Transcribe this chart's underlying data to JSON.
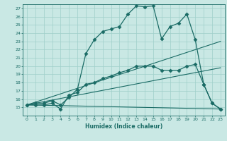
{
  "xlabel": "Humidex (Indice chaleur)",
  "xlim": [
    -0.5,
    23.5
  ],
  "ylim": [
    14,
    27.5
  ],
  "yticks": [
    15,
    16,
    17,
    18,
    19,
    20,
    21,
    22,
    23,
    24,
    25,
    26,
    27
  ],
  "xticks": [
    0,
    1,
    2,
    3,
    4,
    5,
    6,
    7,
    8,
    9,
    10,
    11,
    12,
    13,
    14,
    15,
    16,
    17,
    18,
    19,
    20,
    21,
    22,
    23
  ],
  "bg_color": "#c9e8e4",
  "grid_color": "#9fcfca",
  "line_color": "#1a6b65",
  "series": [
    {
      "x": [
        0,
        1,
        2,
        3,
        4,
        5,
        6,
        7,
        8,
        9,
        10,
        11,
        12,
        13,
        14,
        15,
        16,
        17,
        18,
        19,
        20,
        21,
        22,
        23
      ],
      "y": [
        15.3,
        15.5,
        15.5,
        15.8,
        15.3,
        16.2,
        17.2,
        21.5,
        23.2,
        24.2,
        24.5,
        24.8,
        26.3,
        27.3,
        27.2,
        27.3,
        23.3,
        24.8,
        25.2,
        26.3,
        23.2,
        17.8,
        15.5,
        14.8
      ],
      "marker": "D",
      "markersize": 2.5,
      "linewidth": 0.9,
      "linestyle": "-"
    },
    {
      "x": [
        0,
        1,
        2,
        3,
        4,
        5,
        6,
        7,
        8,
        9,
        10,
        11,
        12,
        13,
        14,
        15,
        16,
        17,
        18,
        19,
        20,
        21,
        22,
        23
      ],
      "y": [
        15.3,
        15.3,
        15.3,
        15.5,
        14.8,
        16.5,
        16.8,
        17.8,
        18.0,
        18.5,
        18.8,
        19.2,
        19.5,
        20.0,
        20.0,
        20.0,
        19.5,
        19.5,
        19.5,
        20.0,
        20.2,
        17.8,
        15.5,
        14.8
      ],
      "marker": "D",
      "markersize": 2.5,
      "linewidth": 0.9,
      "linestyle": "-"
    },
    {
      "x": [
        0,
        23
      ],
      "y": [
        15.3,
        23.0
      ],
      "marker": null,
      "markersize": 0,
      "linewidth": 0.8,
      "linestyle": "-"
    },
    {
      "x": [
        0,
        23
      ],
      "y": [
        15.3,
        19.8
      ],
      "marker": null,
      "markersize": 0,
      "linewidth": 0.8,
      "linestyle": "-"
    },
    {
      "x": [
        0,
        23
      ],
      "y": [
        15.3,
        14.8
      ],
      "marker": null,
      "markersize": 0,
      "linewidth": 0.8,
      "linestyle": "-"
    }
  ]
}
